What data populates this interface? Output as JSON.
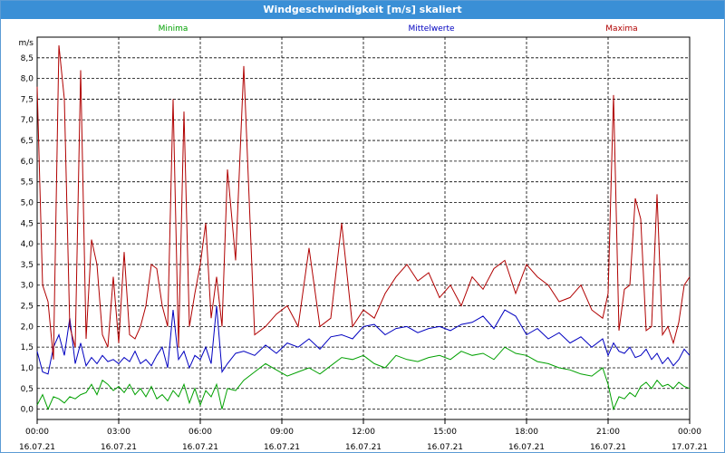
{
  "window": {
    "title": "Windgeschwindigkeit [m/s] skaliert"
  },
  "chart_data": {
    "type": "line",
    "title": "Windgeschwindigkeit [m/s] skaliert",
    "ylabel": "m/s",
    "ylim": [
      -0.25,
      9.0
    ],
    "yticks": [
      "0,0",
      "0,5",
      "1,0",
      "1,5",
      "2,0",
      "2,5",
      "3,0",
      "3,5",
      "4,0",
      "4,5",
      "5,0",
      "5,5",
      "6,0",
      "6,5",
      "7,0",
      "7,5",
      "8,0",
      "8,5"
    ],
    "xticks": [
      {
        "time": "00:00",
        "date": "16.07.21"
      },
      {
        "time": "03:00",
        "date": "16.07.21"
      },
      {
        "time": "06:00",
        "date": "16.07.21"
      },
      {
        "time": "09:00",
        "date": "16.07.21"
      },
      {
        "time": "12:00",
        "date": "16.07.21"
      },
      {
        "time": "15:00",
        "date": "16.07.21"
      },
      {
        "time": "18:00",
        "date": "16.07.21"
      },
      {
        "time": "21:00",
        "date": "16.07.21"
      },
      {
        "time": "00:00",
        "date": "17.07.21"
      }
    ],
    "grid": true,
    "legend_position": "top",
    "series": [
      {
        "name": "Minima",
        "color": "#00a000",
        "x": [
          0,
          0.2,
          0.4,
          0.6,
          0.8,
          1.0,
          1.2,
          1.4,
          1.6,
          1.8,
          2.0,
          2.2,
          2.4,
          2.6,
          2.8,
          3.0,
          3.2,
          3.4,
          3.6,
          3.8,
          4.0,
          4.2,
          4.4,
          4.6,
          4.8,
          5.0,
          5.2,
          5.4,
          5.6,
          5.8,
          6.0,
          6.2,
          6.4,
          6.6,
          6.8,
          7.0,
          7.3,
          7.6,
          8.0,
          8.4,
          8.8,
          9.2,
          9.6,
          10.0,
          10.4,
          10.8,
          11.2,
          11.6,
          12.0,
          12.4,
          12.8,
          13.2,
          13.6,
          14.0,
          14.4,
          14.8,
          15.2,
          15.6,
          16.0,
          16.4,
          16.8,
          17.2,
          17.6,
          18.0,
          18.4,
          18.8,
          19.2,
          19.6,
          20.0,
          20.4,
          20.8,
          21.0,
          21.2,
          21.4,
          21.6,
          21.8,
          22.0,
          22.2,
          22.4,
          22.6,
          22.8,
          23.0,
          23.2,
          23.4,
          23.6,
          23.8,
          24.0
        ],
        "y": [
          0.1,
          0.35,
          0.0,
          0.3,
          0.25,
          0.15,
          0.3,
          0.25,
          0.35,
          0.4,
          0.6,
          0.35,
          0.7,
          0.6,
          0.45,
          0.55,
          0.4,
          0.6,
          0.35,
          0.5,
          0.3,
          0.55,
          0.25,
          0.35,
          0.2,
          0.45,
          0.3,
          0.6,
          0.15,
          0.5,
          0.1,
          0.45,
          0.3,
          0.6,
          0.0,
          0.5,
          0.45,
          0.7,
          0.9,
          1.1,
          0.95,
          0.8,
          0.9,
          1.0,
          0.85,
          1.05,
          1.25,
          1.2,
          1.3,
          1.1,
          1.0,
          1.3,
          1.2,
          1.15,
          1.25,
          1.3,
          1.2,
          1.4,
          1.3,
          1.35,
          1.2,
          1.5,
          1.35,
          1.3,
          1.15,
          1.1,
          1.0,
          0.95,
          0.85,
          0.8,
          1.0,
          0.6,
          0.0,
          0.3,
          0.25,
          0.4,
          0.3,
          0.55,
          0.65,
          0.5,
          0.7,
          0.55,
          0.6,
          0.5,
          0.65,
          0.55,
          0.5
        ]
      },
      {
        "name": "Mittelwerte",
        "color": "#0000c0",
        "x": [
          0,
          0.2,
          0.4,
          0.6,
          0.8,
          1.0,
          1.2,
          1.4,
          1.6,
          1.8,
          2.0,
          2.2,
          2.4,
          2.6,
          2.8,
          3.0,
          3.2,
          3.4,
          3.6,
          3.8,
          4.0,
          4.2,
          4.4,
          4.6,
          4.8,
          5.0,
          5.2,
          5.4,
          5.6,
          5.8,
          6.0,
          6.2,
          6.4,
          6.6,
          6.8,
          7.0,
          7.3,
          7.6,
          8.0,
          8.4,
          8.8,
          9.2,
          9.6,
          10.0,
          10.4,
          10.8,
          11.2,
          11.6,
          12.0,
          12.4,
          12.8,
          13.2,
          13.6,
          14.0,
          14.4,
          14.8,
          15.2,
          15.6,
          16.0,
          16.4,
          16.8,
          17.2,
          17.6,
          18.0,
          18.4,
          18.8,
          19.2,
          19.6,
          20.0,
          20.4,
          20.8,
          21.0,
          21.2,
          21.4,
          21.6,
          21.8,
          22.0,
          22.2,
          22.4,
          22.6,
          22.8,
          23.0,
          23.2,
          23.4,
          23.6,
          23.8,
          24.0
        ],
        "y": [
          1.4,
          0.9,
          0.85,
          1.5,
          1.8,
          1.3,
          2.2,
          1.1,
          1.6,
          1.05,
          1.25,
          1.1,
          1.3,
          1.15,
          1.2,
          1.1,
          1.25,
          1.15,
          1.4,
          1.1,
          1.2,
          1.05,
          1.3,
          1.5,
          1.0,
          2.4,
          1.2,
          1.4,
          1.0,
          1.3,
          1.2,
          1.5,
          1.1,
          2.5,
          0.9,
          1.1,
          1.35,
          1.4,
          1.3,
          1.55,
          1.35,
          1.6,
          1.5,
          1.7,
          1.45,
          1.75,
          1.8,
          1.7,
          2.0,
          2.05,
          1.8,
          1.95,
          2.0,
          1.85,
          1.95,
          2.0,
          1.9,
          2.05,
          2.1,
          2.25,
          1.95,
          2.4,
          2.25,
          1.8,
          1.95,
          1.7,
          1.85,
          1.6,
          1.75,
          1.5,
          1.7,
          1.3,
          1.6,
          1.4,
          1.35,
          1.5,
          1.25,
          1.3,
          1.45,
          1.2,
          1.35,
          1.1,
          1.25,
          1.05,
          1.2,
          1.45,
          1.3
        ]
      },
      {
        "name": "Maxima",
        "color": "#b00000",
        "x": [
          0,
          0.2,
          0.4,
          0.6,
          0.8,
          1.0,
          1.2,
          1.4,
          1.6,
          1.8,
          2.0,
          2.2,
          2.4,
          2.6,
          2.8,
          3.0,
          3.2,
          3.4,
          3.6,
          3.8,
          4.0,
          4.2,
          4.4,
          4.6,
          4.8,
          5.0,
          5.2,
          5.4,
          5.6,
          5.8,
          6.0,
          6.2,
          6.4,
          6.6,
          6.8,
          7.0,
          7.3,
          7.6,
          8.0,
          8.4,
          8.8,
          9.2,
          9.6,
          10.0,
          10.4,
          10.8,
          11.2,
          11.6,
          12.0,
          12.4,
          12.8,
          13.2,
          13.6,
          14.0,
          14.4,
          14.8,
          15.2,
          15.6,
          16.0,
          16.4,
          16.8,
          17.2,
          17.6,
          18.0,
          18.4,
          18.8,
          19.2,
          19.6,
          20.0,
          20.4,
          20.8,
          21.0,
          21.2,
          21.4,
          21.6,
          21.8,
          22.0,
          22.2,
          22.4,
          22.6,
          22.8,
          23.0,
          23.2,
          23.4,
          23.6,
          23.8,
          24.0
        ],
        "y": [
          7.8,
          3.0,
          2.6,
          1.2,
          8.8,
          7.5,
          2.0,
          1.5,
          8.2,
          1.7,
          4.1,
          3.5,
          1.8,
          1.5,
          3.2,
          1.6,
          3.8,
          1.8,
          1.7,
          2.0,
          2.5,
          3.5,
          3.4,
          2.5,
          2.0,
          7.5,
          1.5,
          7.2,
          2.0,
          2.8,
          3.5,
          4.5,
          2.2,
          3.2,
          2.0,
          5.8,
          3.6,
          8.3,
          1.8,
          2.0,
          2.3,
          2.5,
          2.0,
          3.9,
          2.0,
          2.2,
          4.5,
          2.0,
          2.4,
          2.2,
          2.8,
          3.2,
          3.5,
          3.1,
          3.3,
          2.7,
          3.0,
          2.5,
          3.2,
          2.9,
          3.4,
          3.6,
          2.8,
          3.5,
          3.2,
          3.0,
          2.6,
          2.7,
          3.0,
          2.4,
          2.2,
          2.8,
          7.6,
          1.9,
          2.9,
          3.0,
          5.1,
          4.6,
          1.9,
          2.0,
          5.2,
          1.8,
          2.0,
          1.6,
          2.1,
          3.0,
          3.2
        ]
      }
    ]
  }
}
